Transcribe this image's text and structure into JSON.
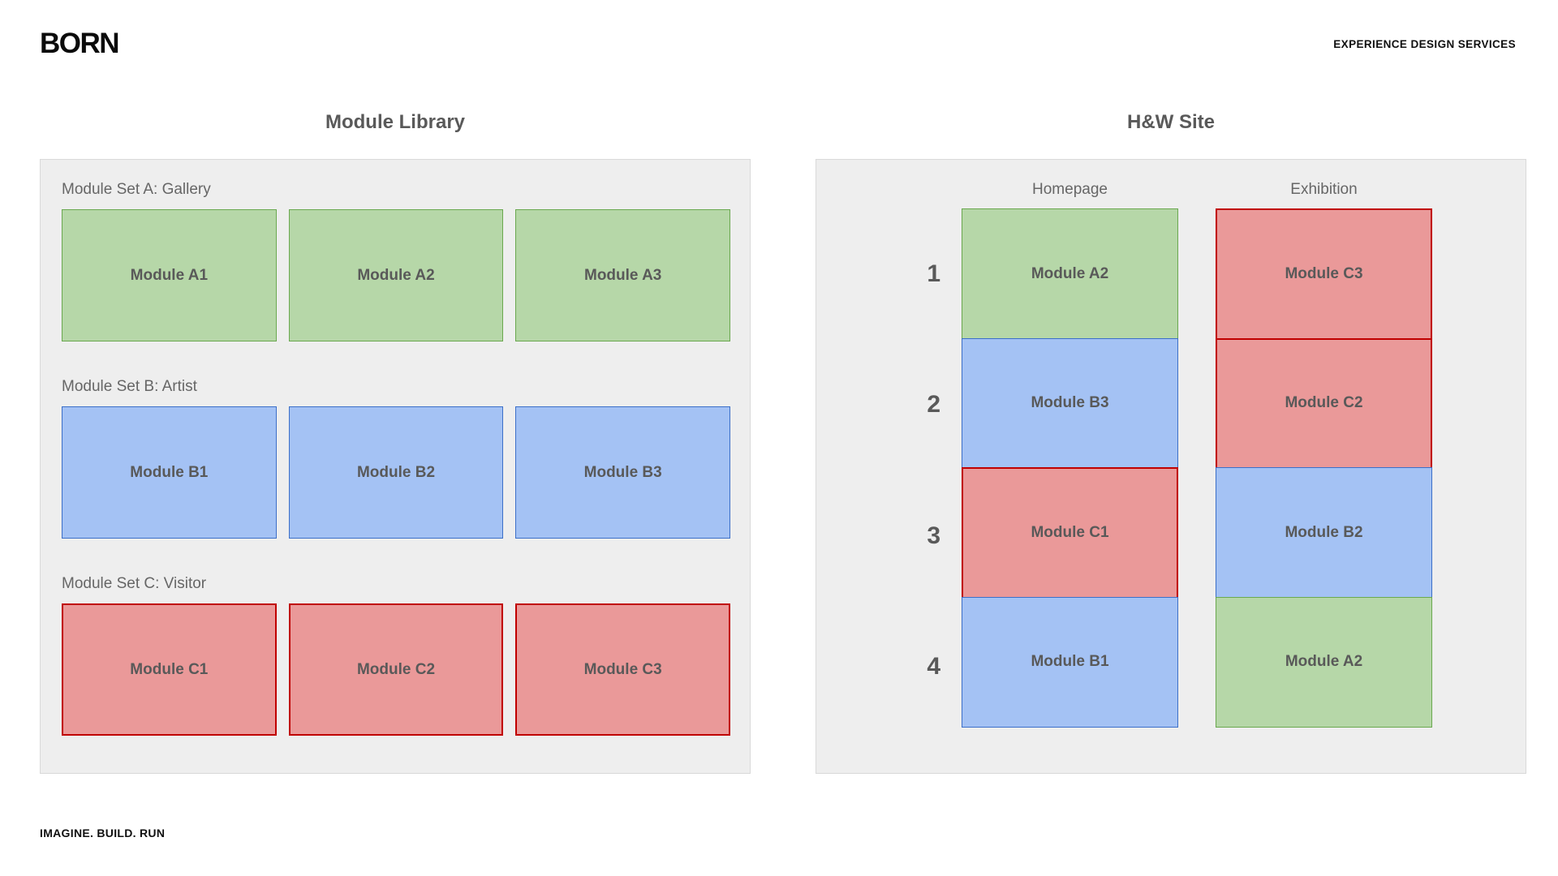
{
  "header": {
    "logo": "BORN",
    "tagline": "EXPERIENCE DESIGN SERVICES"
  },
  "footer": {
    "motto": "IMAGINE. BUILD. RUN"
  },
  "colors": {
    "panel_bg": "#eeeeee",
    "panel_border": "#d9d9d9",
    "green_fill": "#b6d7a8",
    "green_border": "#6aa84f",
    "blue_fill": "#a4c2f4",
    "blue_border": "#3c6fc8",
    "red_fill": "#ea9999",
    "red_border": "#c00000",
    "module_text": "#595959",
    "label_text": "#666666"
  },
  "library": {
    "title": "Module Library",
    "sets": [
      {
        "label": "Module Set A: Gallery",
        "color": "green",
        "modules": [
          "Module A1",
          "Module A2",
          "Module A3"
        ]
      },
      {
        "label": "Module Set B: Artist",
        "color": "blue",
        "modules": [
          "Module B1",
          "Module B2",
          "Module B3"
        ]
      },
      {
        "label": "Module Set C: Visitor",
        "color": "red",
        "modules": [
          "Module C1",
          "Module C2",
          "Module C3"
        ]
      }
    ]
  },
  "site": {
    "title": "H&W Site",
    "row_numbers": [
      "1",
      "2",
      "3",
      "4"
    ],
    "columns": [
      {
        "header": "Homepage",
        "modules": [
          {
            "label": "Module A2",
            "color": "green"
          },
          {
            "label": "Module B3",
            "color": "blue"
          },
          {
            "label": "Module C1",
            "color": "red"
          },
          {
            "label": "Module B1",
            "color": "blue"
          }
        ]
      },
      {
        "header": "Exhibition",
        "modules": [
          {
            "label": "Module C3",
            "color": "red"
          },
          {
            "label": "Module C2",
            "color": "red"
          },
          {
            "label": "Module B2",
            "color": "blue"
          },
          {
            "label": "Module A2",
            "color": "green"
          }
        ]
      }
    ]
  }
}
